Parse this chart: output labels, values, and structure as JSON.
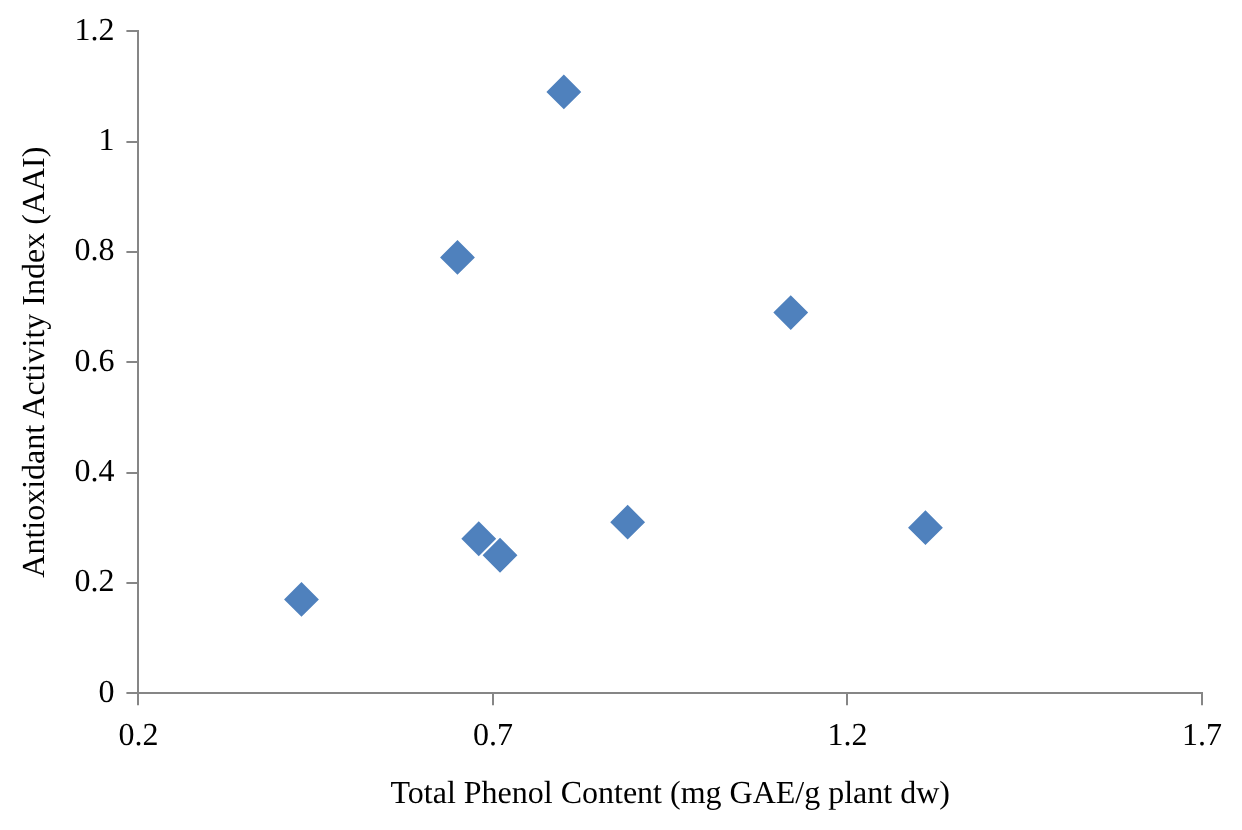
{
  "chart_data": {
    "type": "scatter",
    "xlabel": "Total Phenol Content (mg GAE/g plant dw)",
    "ylabel": "Antioxidant Activity Index (AAI)",
    "x": [
      0.43,
      0.65,
      0.8,
      0.68,
      0.71,
      0.89,
      1.12,
      1.31
    ],
    "series": [
      {
        "color": "#4f81bd",
        "values": [
          0.17,
          0.79,
          1.09,
          0.28,
          0.25,
          0.31,
          0.69,
          0.3
        ]
      }
    ],
    "xlim": [
      0.2,
      1.7
    ],
    "xticks": [
      0.2,
      0.7,
      1.2,
      1.7
    ],
    "ylim": [
      0,
      1.2
    ],
    "yticks": [
      0,
      0.2,
      0.4,
      0.6,
      0.8,
      1,
      1.2
    ],
    "grid": false,
    "legend": false,
    "marker": "diamond"
  }
}
